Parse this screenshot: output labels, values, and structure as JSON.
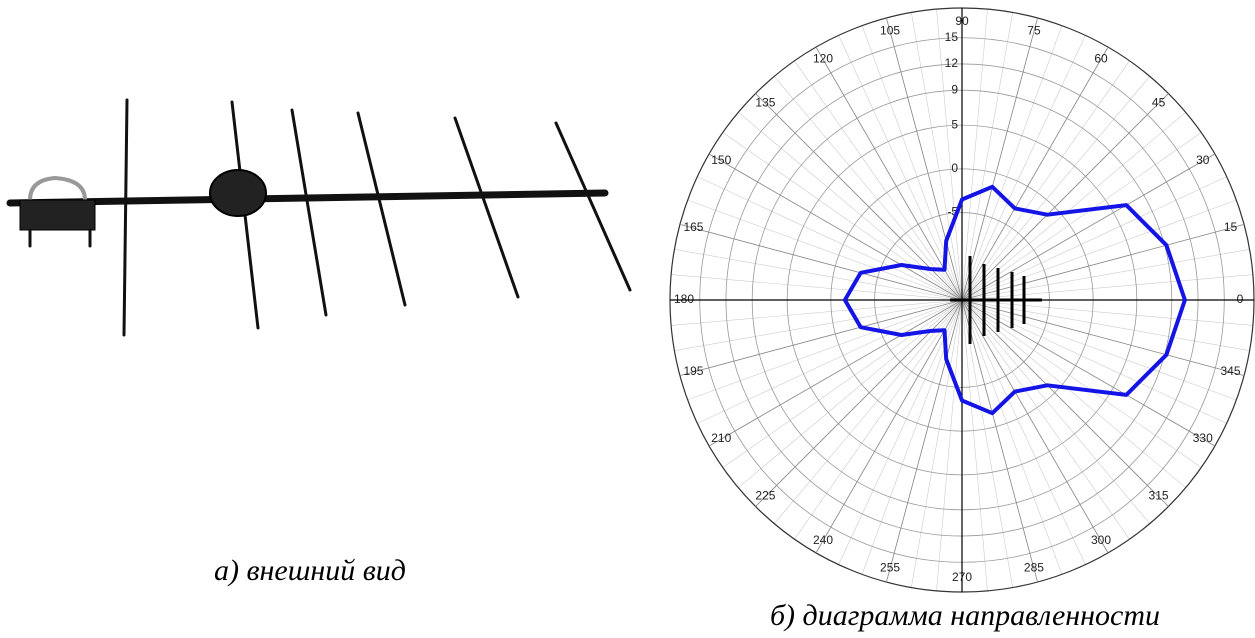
{
  "captions": {
    "left": "а) внешний вид",
    "right": "б) диаграмма направленности"
  },
  "chart_data": {
    "type": "polar",
    "x": [
      0,
      15,
      30,
      45,
      60,
      75,
      90,
      105,
      120,
      135,
      150,
      165,
      180,
      195,
      210,
      225,
      240,
      255,
      270,
      285,
      300,
      315,
      330,
      345
    ],
    "values": [
      10.5,
      9.2,
      6.7,
      -1.2,
      -2.9,
      -1.6,
      -3.5,
      -8,
      -11,
      -10,
      -7,
      -3,
      -1.6,
      -3,
      -7,
      -10,
      -11,
      -8,
      -3.5,
      -1.6,
      -2.9,
      -1.2,
      6.7,
      9.2
    ],
    "color": "#1414e6",
    "rlim": [
      -15,
      18.4
    ],
    "rticks": [
      15,
      12,
      9,
      5,
      0,
      -5
    ],
    "thetaticks": [
      0,
      15,
      30,
      45,
      60,
      75,
      90,
      105,
      120,
      135,
      150,
      165,
      180,
      195,
      210,
      225,
      240,
      255,
      270,
      285,
      300,
      315,
      330,
      345
    ],
    "grid": true
  }
}
